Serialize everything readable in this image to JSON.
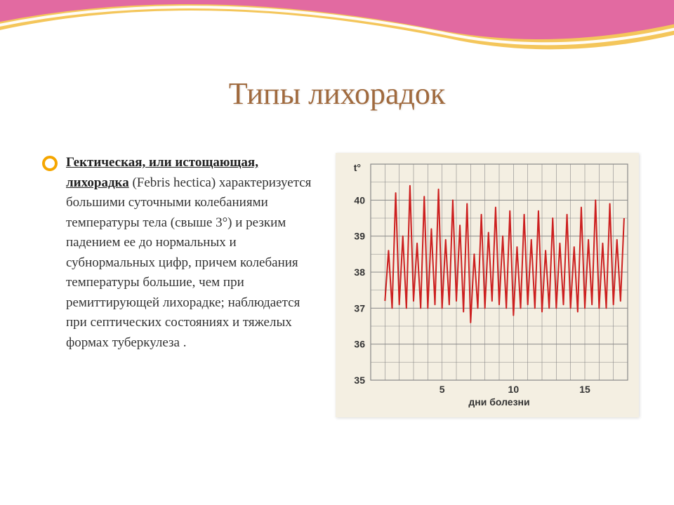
{
  "title": "Типы лихорадок",
  "bullet_lead_underlined": "Гектическая, или истощающая, лихорадка",
  "bullet_rest": " (Febris hectica) характеризуется большими суточными колебаниями температуры тела (свыше 3°) и резким падением ее до нормальных и субнормальных цифр, причем колебания температуры большие, чем при ремиттирующей лихорадке; наблюдается при септических состояниях и тяжелых формах туберкулеза .",
  "swoosh": {
    "outer_color": "#f2bc3e",
    "inner_color": "#e05fa8",
    "highlight_color": "#ffffff"
  },
  "bullet_style": {
    "ring_color": "#f5a600",
    "fill_color": "#ffffff"
  },
  "title_color": "#a06a3e",
  "text_color": "#333333",
  "chart": {
    "type": "line",
    "background_color": "#f4efe2",
    "grid_color": "#888888",
    "series_color": "#cc1f1f",
    "series_width": 2,
    "y_axis_label": "t°",
    "x_axis_label": "дни болезни",
    "y_ticks": [
      35,
      36,
      37,
      38,
      39,
      40
    ],
    "x_ticks": [
      5,
      10,
      15
    ],
    "ylim": [
      35,
      41
    ],
    "xlim": [
      0,
      18
    ],
    "label_fontsize": 14,
    "label_fontweight": "bold",
    "points": [
      [
        1.0,
        37.2
      ],
      [
        1.25,
        38.6
      ],
      [
        1.5,
        37.0
      ],
      [
        1.75,
        40.2
      ],
      [
        2.0,
        37.1
      ],
      [
        2.25,
        39.0
      ],
      [
        2.5,
        37.0
      ],
      [
        2.75,
        40.4
      ],
      [
        3.0,
        37.2
      ],
      [
        3.25,
        38.8
      ],
      [
        3.5,
        37.0
      ],
      [
        3.75,
        40.1
      ],
      [
        4.0,
        37.0
      ],
      [
        4.25,
        39.2
      ],
      [
        4.5,
        37.1
      ],
      [
        4.75,
        40.3
      ],
      [
        5.0,
        37.0
      ],
      [
        5.25,
        38.9
      ],
      [
        5.5,
        37.1
      ],
      [
        5.75,
        40.0
      ],
      [
        6.0,
        37.2
      ],
      [
        6.25,
        39.3
      ],
      [
        6.5,
        36.9
      ],
      [
        6.75,
        39.9
      ],
      [
        7.0,
        36.6
      ],
      [
        7.25,
        38.5
      ],
      [
        7.5,
        37.0
      ],
      [
        7.75,
        39.6
      ],
      [
        8.0,
        37.0
      ],
      [
        8.25,
        39.1
      ],
      [
        8.5,
        37.2
      ],
      [
        8.75,
        39.8
      ],
      [
        9.0,
        37.1
      ],
      [
        9.25,
        39.0
      ],
      [
        9.5,
        37.0
      ],
      [
        9.75,
        39.7
      ],
      [
        10.0,
        36.8
      ],
      [
        10.25,
        38.7
      ],
      [
        10.5,
        37.0
      ],
      [
        10.75,
        39.6
      ],
      [
        11.0,
        37.1
      ],
      [
        11.25,
        38.9
      ],
      [
        11.5,
        37.0
      ],
      [
        11.75,
        39.7
      ],
      [
        12.0,
        36.9
      ],
      [
        12.25,
        38.6
      ],
      [
        12.5,
        37.0
      ],
      [
        12.75,
        39.5
      ],
      [
        13.0,
        37.0
      ],
      [
        13.25,
        38.8
      ],
      [
        13.5,
        37.1
      ],
      [
        13.75,
        39.6
      ],
      [
        14.0,
        37.0
      ],
      [
        14.25,
        38.7
      ],
      [
        14.5,
        36.9
      ],
      [
        14.75,
        39.8
      ],
      [
        15.0,
        37.0
      ],
      [
        15.25,
        38.9
      ],
      [
        15.5,
        37.1
      ],
      [
        15.75,
        40.0
      ],
      [
        16.0,
        37.0
      ],
      [
        16.25,
        38.8
      ],
      [
        16.5,
        37.0
      ],
      [
        16.75,
        39.9
      ],
      [
        17.0,
        37.1
      ],
      [
        17.25,
        38.9
      ],
      [
        17.5,
        37.2
      ],
      [
        17.75,
        39.5
      ]
    ]
  }
}
